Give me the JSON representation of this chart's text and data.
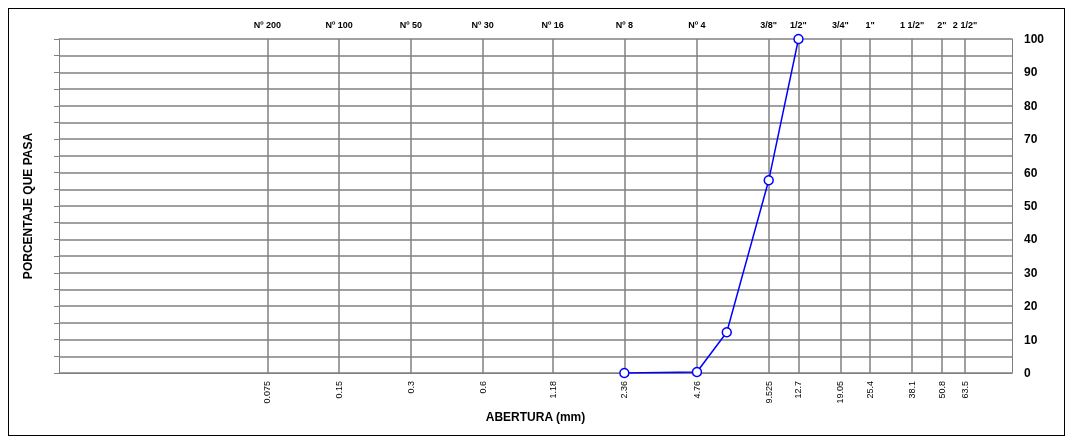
{
  "chart_data": {
    "type": "line",
    "xlabel": "ABERTURA (mm)",
    "ylabel": "PORCENTAJE QUE PASA",
    "log": "x",
    "grid": true,
    "marker": "circle",
    "line_style": "solid",
    "xlim": [
      0.01,
      100
    ],
    "xticks": [
      0.075,
      0.15,
      0.3,
      0.6,
      1.18,
      2.36,
      4.76,
      9.525,
      12.7,
      19.05,
      25.4,
      38.1,
      50.8,
      63.5
    ],
    "annotations": [
      "Nº 200",
      "Nº 100",
      "Nº 50",
      "Nº 30",
      "Nº 16",
      "Nº 8",
      "Nº 4",
      "3/8\"",
      "1/2\"",
      "3/4\"",
      "1\"",
      "1 1/2\"",
      "2\"",
      "2 1/2\""
    ],
    "ylim": [
      0,
      100
    ],
    "yticks": [
      0,
      {
        "value": 5,
        "label": null
      },
      10,
      {
        "value": 15,
        "label": null
      },
      20,
      {
        "value": 25,
        "label": null
      },
      30,
      {
        "value": 35,
        "label": null
      },
      40,
      {
        "value": 45,
        "label": null
      },
      50,
      {
        "value": 55,
        "label": null
      },
      60,
      {
        "value": 65,
        "label": null
      },
      70,
      {
        "value": 75,
        "label": null
      },
      80,
      {
        "value": 85,
        "label": null
      },
      90,
      {
        "value": 95,
        "label": null
      },
      100
    ],
    "series": [
      {
        "color": "#0000ff",
        "x": [
          2.36,
          4.76,
          6.35,
          9.525,
          12.7
        ],
        "values": [
          0,
          0.3,
          12.2,
          57.7,
          100
        ]
      }
    ]
  }
}
